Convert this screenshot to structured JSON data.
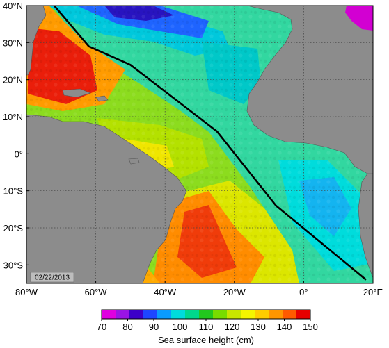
{
  "map": {
    "date": "02/22/2013",
    "lon_range": [
      -80,
      20
    ],
    "lat_range": [
      -35,
      40
    ],
    "lon_ticks": [
      {
        "value": -80,
        "label": "80°W"
      },
      {
        "value": -60,
        "label": "60°W"
      },
      {
        "value": -40,
        "label": "40°W"
      },
      {
        "value": -20,
        "label": "20°W"
      },
      {
        "value": 0,
        "label": "0°"
      },
      {
        "value": 20,
        "label": "20°E"
      }
    ],
    "lat_ticks": [
      {
        "value": 40,
        "label": "40°N"
      },
      {
        "value": 30,
        "label": "30°N"
      },
      {
        "value": 20,
        "label": "20°N"
      },
      {
        "value": 10,
        "label": "10°N"
      },
      {
        "value": 0,
        "label": "0°"
      },
      {
        "value": -10,
        "label": "10°S"
      },
      {
        "value": -20,
        "label": "20°S"
      },
      {
        "value": -30,
        "label": "30°S"
      }
    ],
    "grid": true,
    "land_color": "#8c8c8c",
    "track": [
      {
        "lon": -72,
        "lat": 40
      },
      {
        "lon": -62,
        "lat": 29
      },
      {
        "lon": -50,
        "lat": 24
      },
      {
        "lon": -25,
        "lat": 6
      },
      {
        "lon": -8,
        "lat": -14
      },
      {
        "lon": 18,
        "lat": -34
      }
    ]
  },
  "colorbar": {
    "title": "Sea surface height (cm)",
    "ticks": [
      70,
      80,
      90,
      100,
      110,
      120,
      130,
      140,
      150
    ],
    "colors": [
      "#e000e0",
      "#9a14e6",
      "#3c00c8",
      "#1e46ff",
      "#0a9bff",
      "#00dcdc",
      "#00d88c",
      "#22c81e",
      "#78dc00",
      "#c8e600",
      "#f5f500",
      "#ffcc00",
      "#ff9600",
      "#ff5a00",
      "#e60000"
    ]
  },
  "icons": {
    "track_line": "ship-track-line"
  }
}
